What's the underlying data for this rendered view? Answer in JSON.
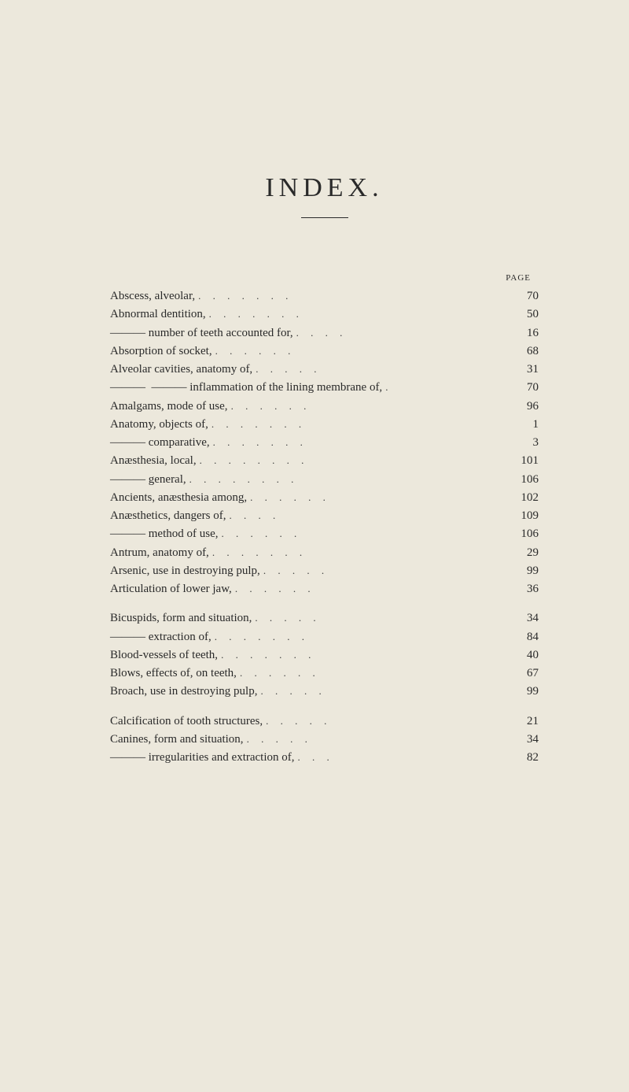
{
  "title": "INDEX.",
  "header_label": "PAGE",
  "sections": [
    {
      "entries": [
        {
          "text": "Abscess, alveolar,",
          "indent": 0,
          "leader": ". . . . . . .",
          "page": "70"
        },
        {
          "text": "Abnormal dentition,",
          "indent": 0,
          "leader": ". . . . . . .",
          "page": "50"
        },
        {
          "text": "——— number of teeth accounted for,",
          "indent": 0,
          "leader": ". . . .",
          "page": "16"
        },
        {
          "text": "Absorption of socket,",
          "indent": 0,
          "leader": ". . . . . .",
          "page": "68"
        },
        {
          "text": "Alveolar cavities, anatomy of,",
          "indent": 0,
          "leader": ". . . . .",
          "page": "31"
        },
        {
          "text": "———  ——— inflammation of the lining membrane of,",
          "indent": 0,
          "leader": ".",
          "page": "70"
        },
        {
          "text": "Amalgams, mode of use,",
          "indent": 0,
          "leader": ". . . . . .",
          "page": "96"
        },
        {
          "text": "Anatomy, objects of,",
          "indent": 0,
          "leader": ". . . . . . .",
          "page": "1"
        },
        {
          "text": "——— comparative,",
          "indent": 0,
          "leader": ". . . . . . .",
          "page": "3"
        },
        {
          "text": "Anæsthesia, local,",
          "indent": 0,
          "leader": ". . . . . . . .",
          "page": "101"
        },
        {
          "text": "——— general,",
          "indent": 0,
          "leader": ". . . . . . . .",
          "page": "106"
        },
        {
          "text": "Ancients, anæsthesia among,",
          "indent": 0,
          "leader": ". . . . . .",
          "page": "102"
        },
        {
          "text": "Anæsthetics, dangers of,",
          "indent": 0,
          "leader": ". .   . .",
          "page": "109"
        },
        {
          "text": "——— method of use,",
          "indent": 0,
          "leader": ". . . . .  .",
          "page": "106"
        },
        {
          "text": "Antrum, anatomy of,",
          "indent": 0,
          "leader": ". . . . . . .",
          "page": "29"
        },
        {
          "text": "Arsenic, use in destroying pulp,",
          "indent": 0,
          "leader": ". . . . .",
          "page": "99"
        },
        {
          "text": "Articulation of lower jaw,",
          "indent": 0,
          "leader": ". . . . . .",
          "page": "36"
        }
      ]
    },
    {
      "entries": [
        {
          "text": "Bicuspids, form and situation,",
          "indent": 0,
          "leader": ". . . . .",
          "page": "34"
        },
        {
          "text": "——— extraction of,",
          "indent": 0,
          "leader": ". . . . . . .",
          "page": "84"
        },
        {
          "text": "Blood-vessels of teeth,",
          "indent": 0,
          "leader": ". . . . . . .",
          "page": "40"
        },
        {
          "text": "Blows, effects of, on teeth,",
          "indent": 0,
          "leader": ". . . . . .",
          "page": "67"
        },
        {
          "text": "Broach, use in destroying pulp,",
          "indent": 0,
          "leader": ". . . . .",
          "page": "99"
        }
      ]
    },
    {
      "entries": [
        {
          "text": "Calcification of tooth structures,",
          "indent": 0,
          "leader": ". . . . .",
          "page": "21"
        },
        {
          "text": "Canines, form and situation,",
          "indent": 0,
          "leader": ". . . .  .",
          "page": "34"
        },
        {
          "text": "——— irregularities and extraction of,",
          "indent": 0,
          "leader": " . . .",
          "page": "82"
        }
      ]
    }
  ]
}
